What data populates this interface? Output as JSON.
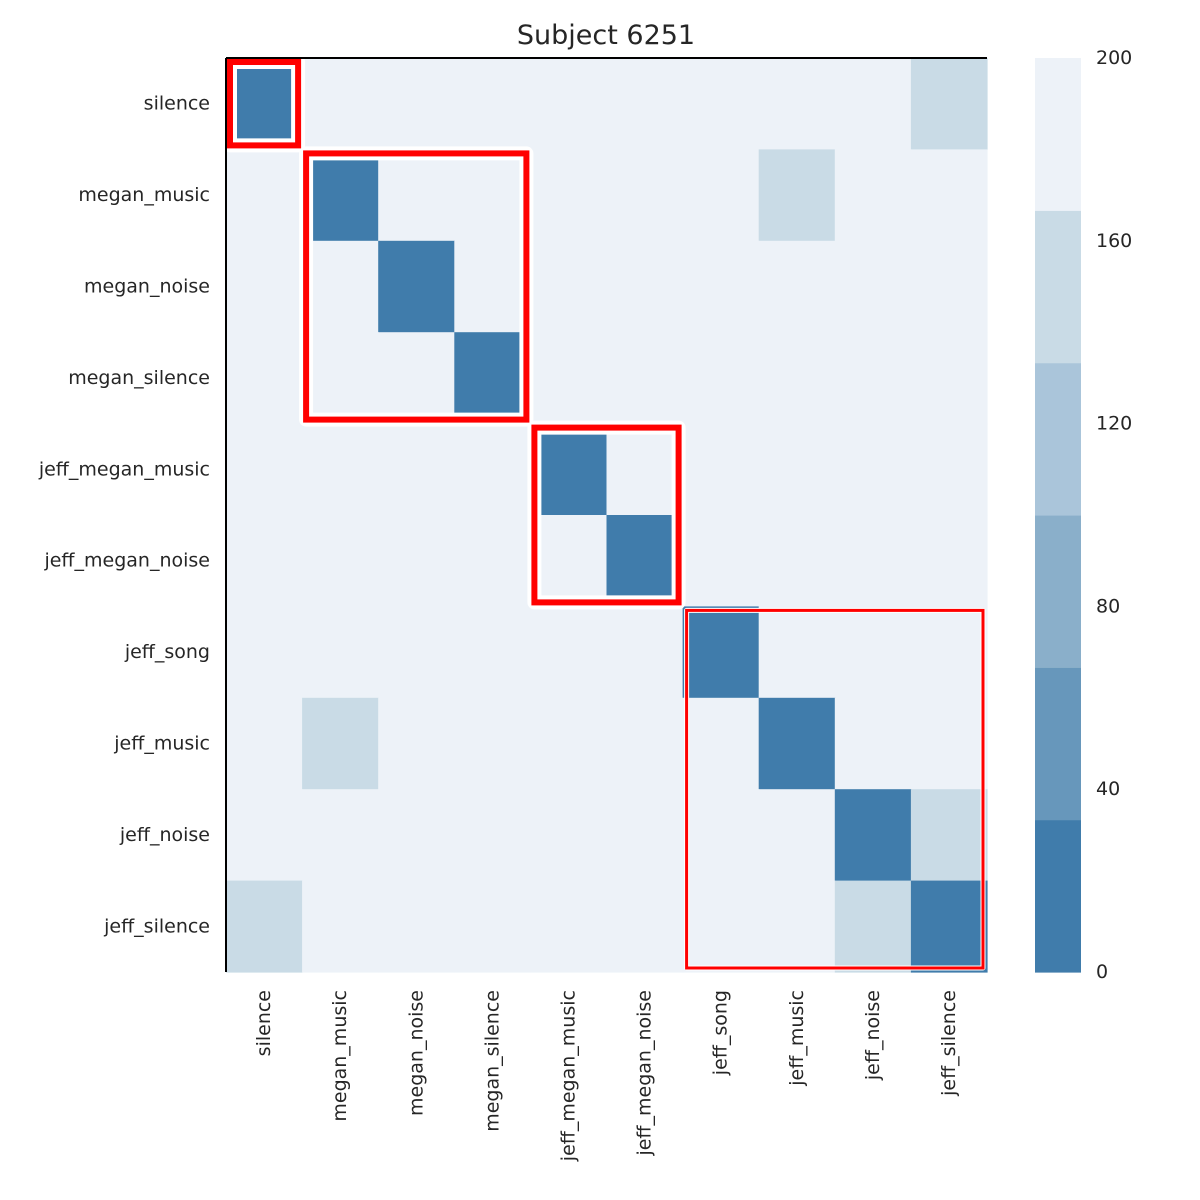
{
  "chart_data": {
    "type": "heatmap",
    "title": "Subject 6251",
    "xlabel": "",
    "ylabel": "",
    "row_labels": [
      "silence",
      "megan_music",
      "megan_noise",
      "megan_silence",
      "jeff_megan_music",
      "jeff_megan_noise",
      "jeff_song",
      "jeff_music",
      "jeff_noise",
      "jeff_silence"
    ],
    "col_labels": [
      "silence",
      "megan_music",
      "megan_noise",
      "megan_silence",
      "jeff_megan_music",
      "jeff_megan_noise",
      "jeff_song",
      "jeff_music",
      "jeff_noise",
      "jeff_silence"
    ],
    "values": [
      [
        10,
        190,
        190,
        190,
        190,
        190,
        190,
        190,
        190,
        150
      ],
      [
        190,
        10,
        190,
        190,
        190,
        190,
        190,
        150,
        190,
        190
      ],
      [
        190,
        190,
        10,
        190,
        190,
        190,
        190,
        190,
        190,
        190
      ],
      [
        190,
        190,
        190,
        10,
        190,
        190,
        190,
        190,
        190,
        190
      ],
      [
        190,
        190,
        190,
        190,
        10,
        190,
        190,
        190,
        190,
        190
      ],
      [
        190,
        190,
        190,
        190,
        190,
        10,
        190,
        190,
        190,
        190
      ],
      [
        190,
        190,
        190,
        190,
        190,
        190,
        10,
        190,
        190,
        190
      ],
      [
        190,
        150,
        190,
        190,
        190,
        190,
        190,
        10,
        190,
        190
      ],
      [
        190,
        190,
        190,
        190,
        190,
        190,
        190,
        190,
        10,
        150
      ],
      [
        150,
        190,
        190,
        190,
        190,
        190,
        190,
        190,
        150,
        10
      ]
    ],
    "colorbar": {
      "min": 0,
      "max": 200,
      "ticks": [
        "0",
        "40",
        "80",
        "120",
        "160",
        "200"
      ],
      "bin_colors": [
        "#407cab",
        "#6797bb",
        "#8aafca",
        "#aac5da",
        "#c9dbe6",
        "#edf2f8"
      ]
    },
    "cluster_groups": [
      [
        0,
        0
      ],
      [
        1,
        3
      ],
      [
        4,
        5
      ],
      [
        6,
        9
      ]
    ],
    "highlight_color": "#ff0000",
    "grid": false
  }
}
